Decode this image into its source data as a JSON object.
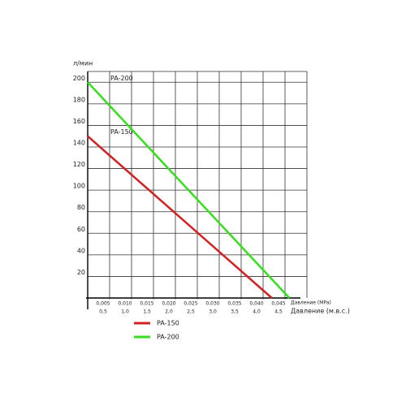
{
  "chart_data": {
    "type": "line",
    "ylabel": "л/мин",
    "xlabel": "Давление (MPa)",
    "x2label": "Давление (м.в.с.)",
    "xlim": [
      0,
      0.05
    ],
    "ylim": [
      0,
      210
    ],
    "x2lim": [
      0,
      5
    ],
    "yticks": [
      20,
      40,
      60,
      80,
      100,
      120,
      140,
      160,
      180,
      200
    ],
    "xticks": [
      {
        "value": 0.005,
        "label": "0,005"
      },
      {
        "value": 0.01,
        "label": "0,010"
      },
      {
        "value": 0.015,
        "label": "0,015"
      },
      {
        "value": 0.02,
        "label": "0,020"
      },
      {
        "value": 0.025,
        "label": "0,025"
      },
      {
        "value": 0.03,
        "label": "0,030"
      },
      {
        "value": 0.035,
        "label": "0,035"
      },
      {
        "value": 0.04,
        "label": "0,040"
      },
      {
        "value": 0.045,
        "label": "0,045"
      }
    ],
    "x2ticks": [
      {
        "value": 0.5,
        "label": "0,5"
      },
      {
        "value": 1.0,
        "label": "1,0"
      },
      {
        "value": 1.5,
        "label": "1,5"
      },
      {
        "value": 2.0,
        "label": "2,0"
      },
      {
        "value": 2.5,
        "label": "2,5"
      },
      {
        "value": 3.0,
        "label": "3,0"
      },
      {
        "value": 3.5,
        "label": "3,5"
      },
      {
        "value": 4.0,
        "label": "4,0"
      },
      {
        "value": 4.5,
        "label": "4,5"
      }
    ],
    "grid": true,
    "series": [
      {
        "name": "PA-150",
        "color": "#d42020",
        "x": [
          0,
          0.042
        ],
        "values": [
          150,
          0
        ]
      },
      {
        "name": "PA-200",
        "color": "#33e01a",
        "x": [
          0,
          0.046
        ],
        "values": [
          200,
          0
        ]
      }
    ]
  }
}
